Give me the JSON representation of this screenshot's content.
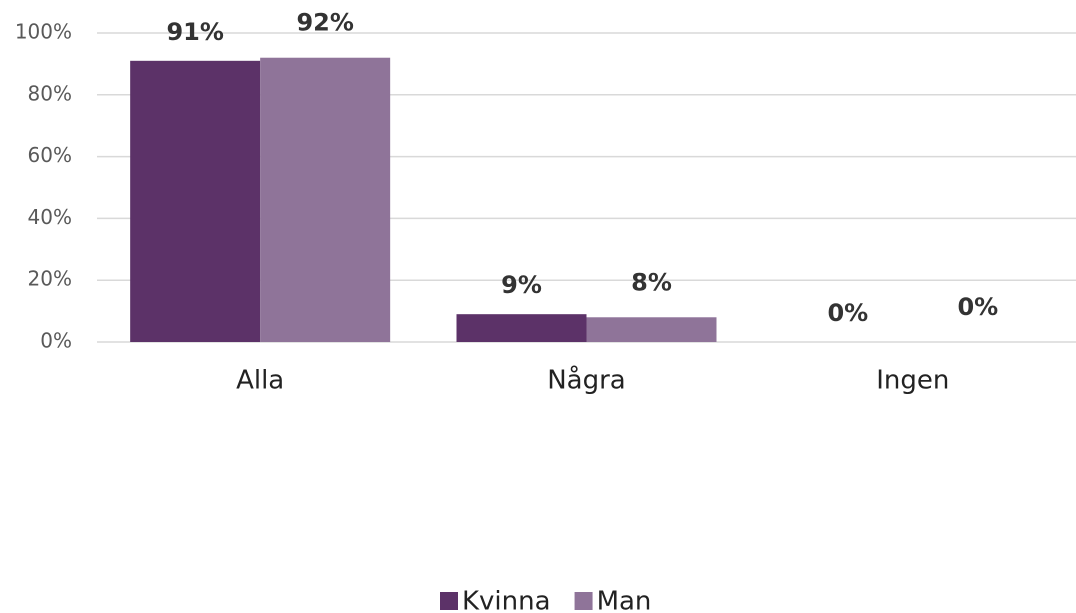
{
  "chart_data": {
    "type": "bar",
    "categories": [
      "Alla",
      "Några",
      "Ingen"
    ],
    "series": [
      {
        "name": "Kvinna",
        "color": "#5c3268",
        "values": [
          91,
          9,
          0
        ],
        "value_labels": [
          "91%",
          "9%",
          "0%"
        ]
      },
      {
        "name": "Man",
        "color": "#8f7499",
        "values": [
          92,
          8,
          0
        ],
        "value_labels": [
          "92%",
          "8%",
          "0%"
        ]
      }
    ],
    "ylim": [
      0,
      100
    ],
    "yticks": [
      {
        "value": 0,
        "label": "0%"
      },
      {
        "value": 20,
        "label": "20%"
      },
      {
        "value": 40,
        "label": "40%"
      },
      {
        "value": 60,
        "label": "60%"
      },
      {
        "value": 80,
        "label": "80%"
      },
      {
        "value": 100,
        "label": "100%"
      }
    ],
    "grid": true,
    "legend": "bottom"
  }
}
